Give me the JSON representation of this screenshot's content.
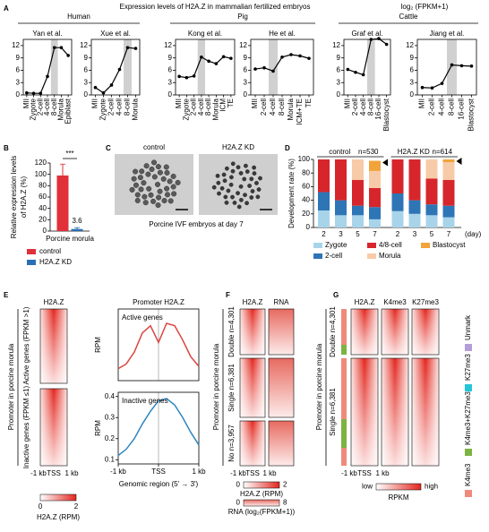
{
  "figure": {
    "panel_labels": [
      "A",
      "B",
      "C",
      "D",
      "E",
      "F",
      "G"
    ],
    "A": {
      "title": "Expression levels of H2A.Z in mammalian fertilized embryos",
      "unit": "log₂ (FPKM+1)",
      "species": [
        "Human",
        "Pig",
        "Cattle"
      ]
    },
    "C": {
      "labels": [
        "control",
        "H2A.Z KD"
      ],
      "caption": "Porcine IVF embryos at day 7"
    },
    "E": {
      "heatmap_title": "H2A.Z",
      "ylabel": "Promoter in porcine morula",
      "groups": [
        "Active genes (FPKM >1)",
        "Inactive genes (FPKM ≤1)"
      ],
      "xticks": [
        "-1 kb",
        "TSS",
        "1 kb"
      ],
      "colorbar": {
        "min": "0",
        "max": "2",
        "label": "H2A.Z (RPM)"
      },
      "profile_title": "Promoter H2A.Z",
      "profile_xlabel": "Genomic region (5' → 3')"
    },
    "F": {
      "columns": [
        "H2A.Z",
        "RNA"
      ],
      "ylabel": "Promoter in porcine morula",
      "groups": [
        "Double n=4,301",
        "Single n=6,381",
        "No n=3,957"
      ],
      "xticks": [
        "-1 kb",
        "TSS",
        "1 kb"
      ],
      "colorbars": [
        {
          "min": "0",
          "max": "2",
          "label": "H2A.Z (RPM)"
        },
        {
          "min": "0",
          "max": "8",
          "label": "RNA (log₂(FPKM+1))"
        }
      ]
    },
    "G": {
      "columns": [
        "H2A.Z",
        "K4me3",
        "K27me3"
      ],
      "ylabel": "Promoter in porcine morula",
      "groups": [
        "Double n=4,301",
        "Single n=6,381"
      ],
      "clusters": [
        {
          "label": "Unmark",
          "color": "#b39ddb"
        },
        {
          "label": "K27me3",
          "color": "#26c6da"
        },
        {
          "label": "K4me3+K27me3",
          "color": "#7cb342"
        },
        {
          "label": "K4me3",
          "color": "#ef8a7a"
        }
      ],
      "xticks": [
        "-1 kb",
        "TSS",
        "1 kb"
      ],
      "colorbar": {
        "min": "low",
        "max": "high",
        "label": "RPKM"
      }
    }
  },
  "chart_data": [
    {
      "type": "line",
      "title": "Yan et al.",
      "categories": [
        "MII",
        "Zygote",
        "2-cell",
        "4-cell",
        "8-cell",
        "Morula",
        "Epiblast"
      ],
      "values": [
        0.5,
        0.4,
        0.4,
        4.5,
        11.5,
        11.5,
        9.6
      ],
      "color": "#000000",
      "highlight_index": 4,
      "ylim": [
        0,
        13.5
      ],
      "yticks": [
        0,
        3,
        6,
        9,
        12
      ]
    },
    {
      "type": "line",
      "title": "Xue et al.",
      "categories": [
        "MII",
        "Zygote",
        "2-cell",
        "4-cell",
        "8-cell",
        "Morula"
      ],
      "values": [
        1.8,
        0.5,
        2.4,
        6.2,
        11.5,
        11.3
      ],
      "color": "#000000",
      "highlight_index": 4,
      "ylim": [
        0,
        13.5
      ],
      "yticks": [
        0,
        3,
        6,
        9,
        12
      ]
    },
    {
      "type": "line",
      "title": "Kong et al.",
      "categories": [
        "MII",
        "Zygote",
        "2-cell",
        "4-cell",
        "8-cell",
        "Morula",
        "ICM",
        "TE"
      ],
      "values": [
        4.5,
        4.2,
        4.6,
        9.2,
        8.2,
        7.6,
        9.3,
        8.9
      ],
      "color": "#000000",
      "highlight_index": 3,
      "ylim": [
        0,
        13.5
      ],
      "yticks": [
        0,
        3,
        6,
        9,
        12
      ]
    },
    {
      "type": "line",
      "title": "He et al.",
      "categories": [
        "MII",
        "2-cell",
        "4-cell",
        "8-cell",
        "Morula",
        "ICM+TE",
        "TE"
      ],
      "values": [
        6.3,
        6.6,
        5.8,
        9.2,
        9.8,
        9.5,
        8.9
      ],
      "color": "#000000",
      "highlight_index": 2,
      "ylim": [
        0,
        13.5
      ],
      "yticks": [
        0,
        3,
        6,
        9,
        12
      ]
    },
    {
      "type": "line",
      "title": "Graf et al.",
      "categories": [
        "MII",
        "2-cell",
        "4-cell",
        "8-cell",
        "16-cell",
        "Blastocyst"
      ],
      "values": [
        6.2,
        5.5,
        4.9,
        13.5,
        13.7,
        12.3
      ],
      "color": "#000000",
      "highlight_index": 3,
      "ylim": [
        0,
        13.5
      ],
      "yticks": [
        0,
        3,
        6,
        9,
        12
      ]
    },
    {
      "type": "line",
      "title": "Jiang et al.",
      "categories": [
        "MII",
        "2-cell",
        "4-cell",
        "8-cell",
        "16-cell",
        "Blastocyst"
      ],
      "values": [
        1.8,
        1.7,
        2.8,
        7.3,
        7.1,
        7.0
      ],
      "color": "#000000",
      "highlight_index": 3,
      "ylim": [
        0,
        13.5
      ],
      "yticks": [
        0,
        3,
        6,
        9,
        12
      ]
    },
    {
      "type": "bar",
      "categories": [
        "Porcine morula"
      ],
      "ylabel": [
        "Relative expression levels",
        "of H2A.Z (%)"
      ],
      "ylim": [
        0,
        120
      ],
      "yticks": [
        0,
        20,
        40,
        60,
        80,
        100,
        120
      ],
      "annotation": "***",
      "series": [
        {
          "name": "control",
          "color": "#e0303a",
          "values": [
            98
          ],
          "errors": [
            20
          ]
        },
        {
          "name": "H2A.Z KD",
          "color": "#2a6fb5",
          "values": [
            3.6
          ],
          "errors": [
            2.5
          ]
        }
      ]
    },
    {
      "type": "stacked_bar",
      "categories": [
        2,
        3,
        5,
        7,
        2,
        3,
        5,
        7
      ],
      "groups": [
        {
          "name": "control",
          "label": "n=530"
        },
        {
          "name": "H2A.Z KD",
          "label": "n=614"
        }
      ],
      "xlabel": "(day)",
      "ylabel": "Development rate (%)",
      "ylim": [
        0,
        100
      ],
      "yticks": [
        0,
        20,
        40,
        60,
        80,
        100
      ],
      "series": [
        {
          "name": "Zygote",
          "color": "#a8d4ea",
          "values": [
            25,
            18,
            18,
            12,
            24,
            20,
            18,
            15
          ]
        },
        {
          "name": "2-cell",
          "color": "#2e75b6",
          "values": [
            27,
            22,
            14,
            18,
            26,
            20,
            16,
            17
          ]
        },
        {
          "name": "4/8-cell",
          "color": "#d7262b",
          "values": [
            48,
            60,
            38,
            28,
            50,
            60,
            38,
            38
          ]
        },
        {
          "name": "Morula",
          "color": "#f7cba8",
          "values": [
            0,
            0,
            30,
            25,
            0,
            0,
            28,
            26
          ]
        },
        {
          "name": "Blastocyst",
          "color": "#f2a33a",
          "values": [
            0,
            0,
            0,
            15,
            0,
            0,
            0,
            4
          ]
        }
      ]
    },
    {
      "type": "line",
      "title": "Active genes",
      "ylabel": "RPM",
      "x": [
        -1,
        -0.8,
        -0.6,
        -0.4,
        -0.2,
        0,
        0.2,
        0.4,
        0.6,
        0.8,
        1
      ],
      "values": [
        0.15,
        0.17,
        0.22,
        0.3,
        0.33,
        0.26,
        0.34,
        0.33,
        0.27,
        0.2,
        0.16
      ],
      "color": "#d9453f",
      "xlim": [
        -1,
        1
      ],
      "ylim": [
        0.1,
        0.4
      ]
    },
    {
      "type": "line",
      "title": "Inactive genes",
      "ylabel": "RPM",
      "x": [
        -1,
        -0.8,
        -0.6,
        -0.4,
        -0.2,
        0,
        0.2,
        0.4,
        0.6,
        0.8,
        1
      ],
      "values": [
        0.12,
        0.15,
        0.2,
        0.27,
        0.33,
        0.38,
        0.39,
        0.36,
        0.3,
        0.23,
        0.17
      ],
      "color": "#2e86c1",
      "xlim": [
        -1,
        1
      ],
      "ylim": [
        0.08,
        0.42
      ],
      "yticks": [
        0.1,
        0.2,
        0.3,
        0.4
      ],
      "xticks": [
        {
          "value": -1,
          "label": "-1 kb"
        },
        {
          "value": 0,
          "label": "TSS"
        },
        {
          "value": 1,
          "label": "1 kb"
        }
      ]
    }
  ]
}
